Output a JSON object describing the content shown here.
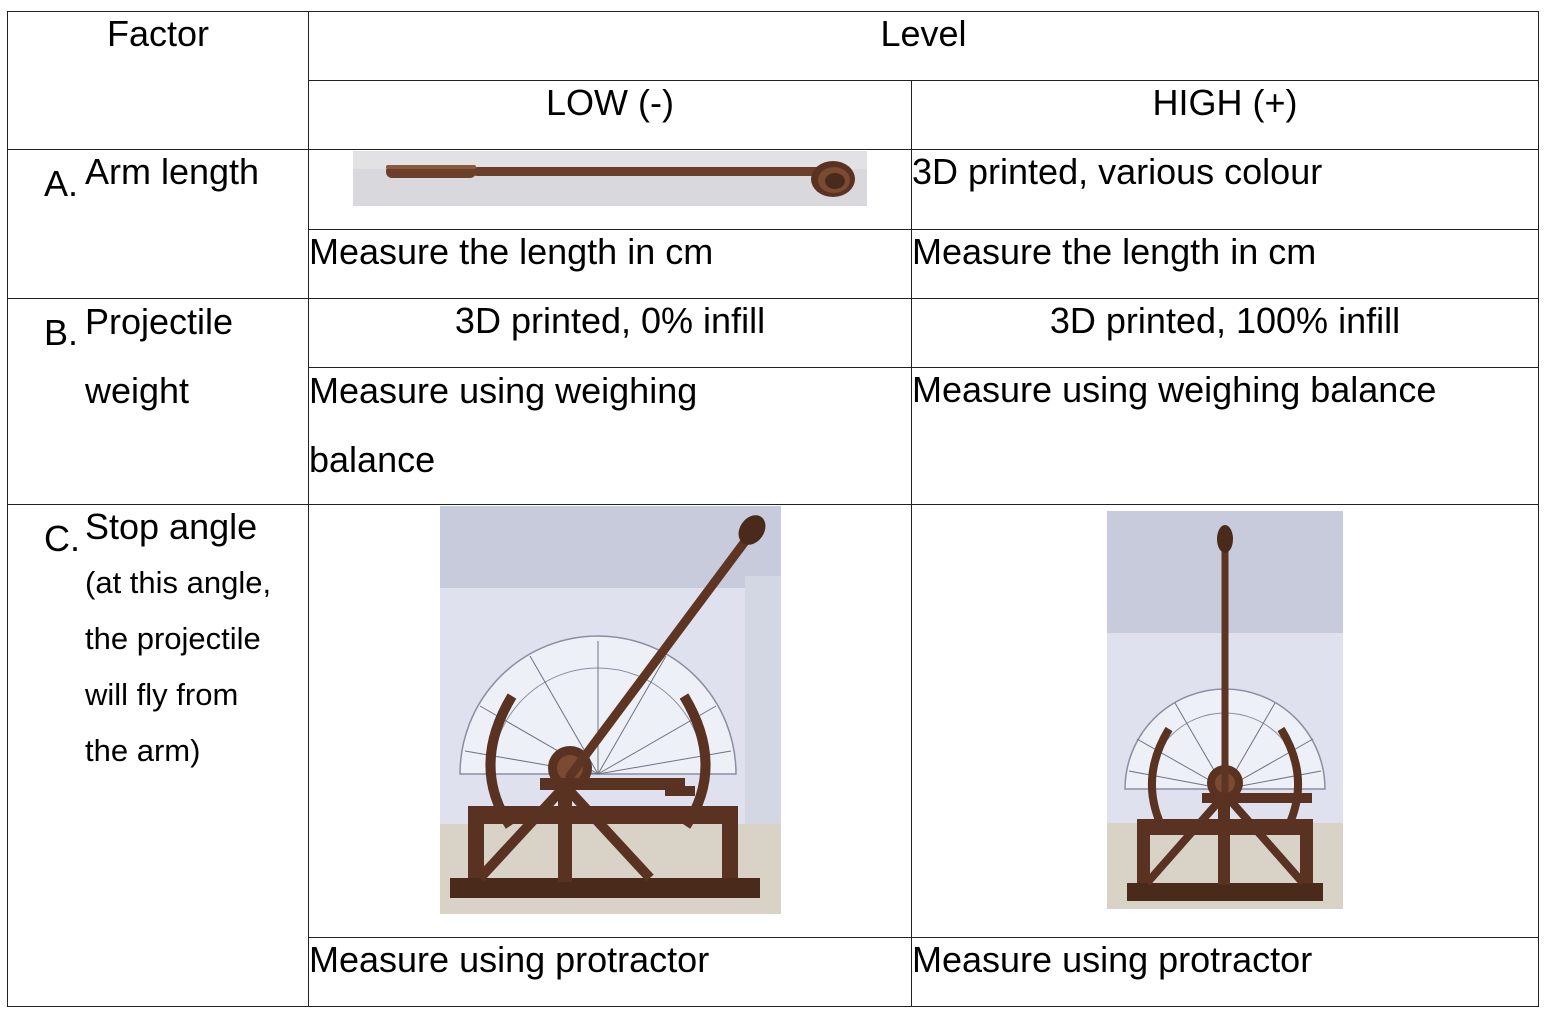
{
  "table": {
    "header": {
      "factor": "Factor",
      "level": "Level",
      "low": "LOW (-)",
      "high": "HIGH (+)"
    },
    "rows": [
      {
        "letter": "A.",
        "label": "Arm length",
        "low_top": "",
        "low_top_image": "catapult-arm-photo",
        "high_top": "3D printed, various colour",
        "low_bottom": "Measure the length in cm",
        "high_bottom": "Measure the length in cm"
      },
      {
        "letter": "B.",
        "label_line1": "Projectile",
        "label_line2": "weight",
        "low_top": "3D printed, 0% infill",
        "high_top": "3D printed, 100% infill",
        "low_bottom_line1": "Measure using weighing",
        "low_bottom_line2": "balance",
        "high_bottom": "Measure using weighing balance"
      },
      {
        "letter": "C.",
        "label": "Stop angle",
        "note_lines": [
          "(at this angle,",
          "the projectile",
          "will fly from",
          "the arm)"
        ],
        "low_top_image": "catapult-low-angle-photo",
        "high_top_image": "catapult-high-angle-photo",
        "low_bottom": "Measure using protractor",
        "high_bottom": "Measure using protractor"
      }
    ]
  },
  "colors": {
    "wood": "#6b3f2a",
    "wood_dark": "#4a2a1b",
    "wall": "#c8ccdc",
    "paper": "#e9ebf3",
    "shelf": "#d8d2c8"
  }
}
